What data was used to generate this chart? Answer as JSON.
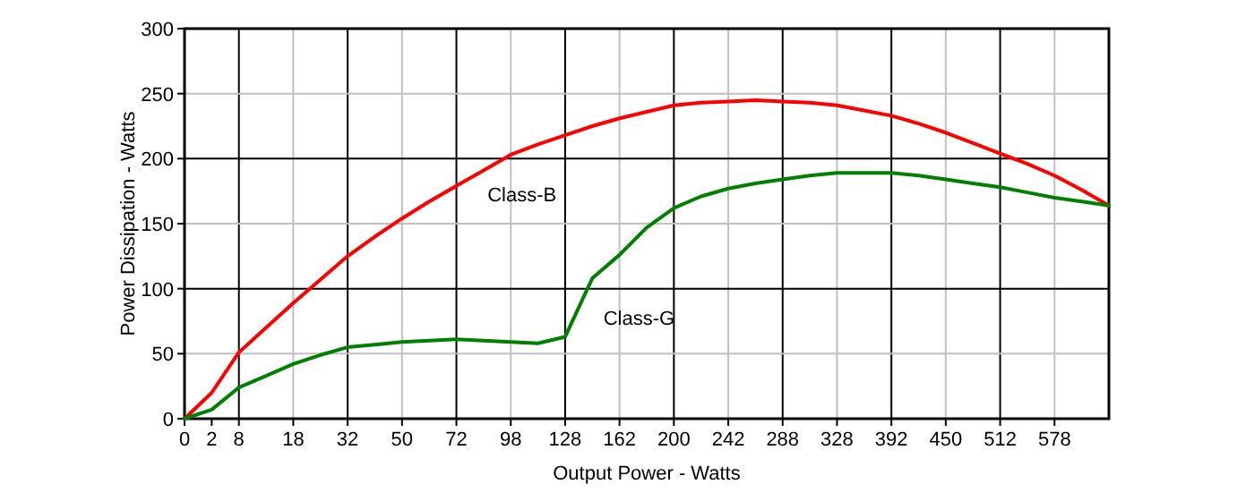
{
  "chart_data": {
    "type": "line",
    "xlabel": "Output Power - Watts",
    "ylabel": "Power Dissipation - Watts",
    "categories": [
      "0",
      "2",
      "8",
      null,
      "18",
      null,
      "32",
      null,
      "50",
      null,
      "72",
      null,
      "98",
      null,
      "128",
      null,
      "162",
      null,
      "200",
      null,
      "242",
      null,
      "288",
      null,
      "328",
      null,
      "392",
      null,
      "450",
      null,
      "512",
      null,
      "578",
      null,
      null
    ],
    "ylim": [
      0,
      300
    ],
    "yticks": [
      0,
      50,
      100,
      150,
      200,
      250,
      300
    ],
    "grid": true,
    "marker": "none",
    "line_style": "solid",
    "series": [
      {
        "name": "Class-B",
        "color": "#ff0000",
        "values": [
          0,
          20,
          51,
          70,
          89,
          107,
          125,
          140,
          154,
          167,
          179,
          191,
          203,
          211,
          218,
          225,
          231,
          236,
          241,
          243,
          244,
          245,
          244,
          243,
          241,
          237,
          233,
          227,
          220,
          212,
          204,
          196,
          187,
          176,
          164
        ]
      },
      {
        "name": "Class-G",
        "color": "#008000",
        "values": [
          0,
          7,
          24,
          33,
          42,
          49,
          55,
          57,
          59,
          60,
          61,
          60,
          59,
          58,
          63,
          108,
          126,
          147,
          162,
          171,
          177,
          181,
          184,
          187,
          189,
          189,
          189,
          187,
          184,
          181,
          178,
          174,
          170,
          167,
          164
        ]
      }
    ]
  }
}
